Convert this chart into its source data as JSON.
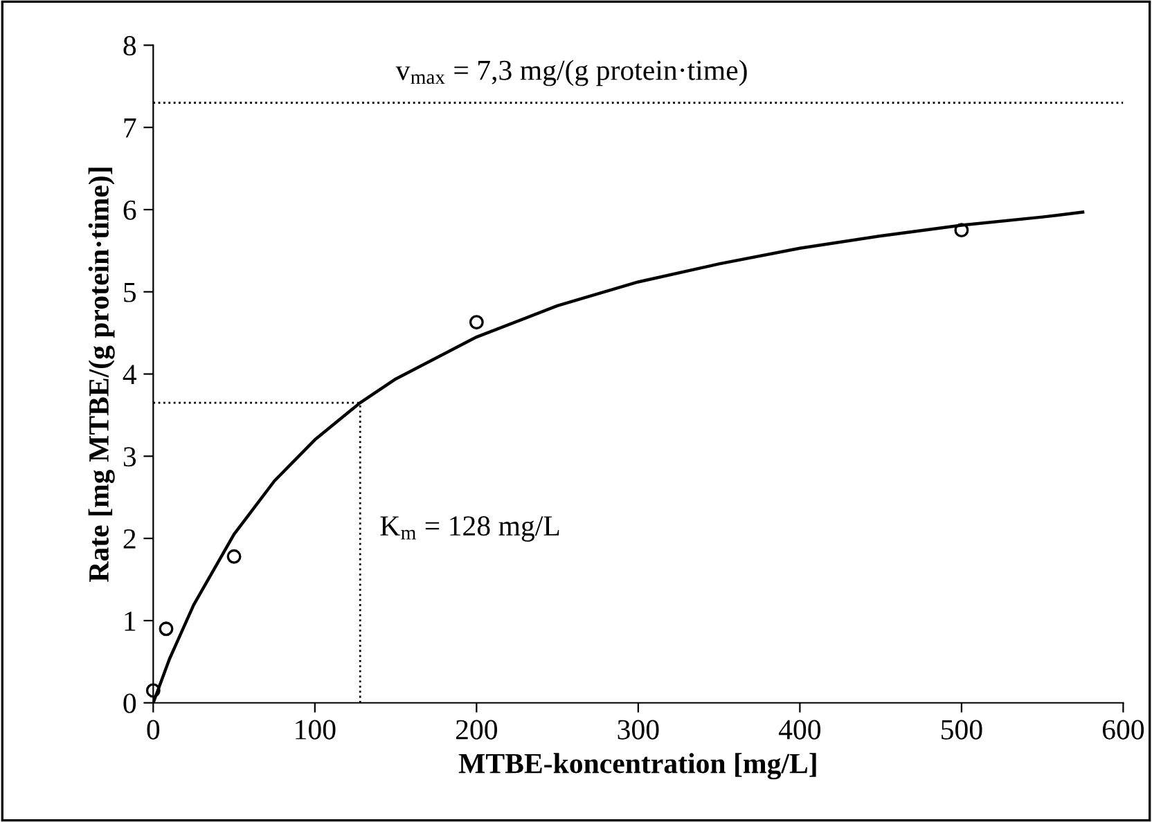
{
  "chart_data": {
    "type": "line",
    "xlabel": "MTBE-koncentration [mg/L]",
    "ylabel": "Rate [mg MTBE/(g protein·time)]",
    "xlim": [
      0,
      600
    ],
    "xticks": [
      0,
      100,
      200,
      300,
      400,
      500,
      600
    ],
    "ylim": [
      0,
      8
    ],
    "yticks": [
      0,
      1,
      2,
      3,
      4,
      5,
      6,
      7,
      8
    ],
    "grid": false,
    "legend": false,
    "series": [
      {
        "type": "scatter",
        "color": "#000000",
        "marker": "circle",
        "x": [
          0,
          8,
          50,
          200,
          500
        ],
        "values": [
          0.15,
          0.9,
          1.78,
          4.63,
          5.75
        ]
      },
      {
        "color": "#000000",
        "marker": "none",
        "line_style": "solid",
        "x": [
          0,
          10,
          25,
          50,
          75,
          100,
          128,
          150,
          200,
          250,
          300,
          350,
          400,
          450,
          500,
          550,
          575
        ],
        "values": [
          0,
          0.53,
          1.19,
          2.05,
          2.7,
          3.2,
          3.65,
          3.94,
          4.45,
          4.83,
          5.12,
          5.34,
          5.53,
          5.68,
          5.81,
          5.91,
          5.97
        ]
      }
    ],
    "ref_lines": [
      {
        "axis": "y",
        "value": 7.3,
        "label": "v$_{max}$ = 7,3 mg/(g protein·time)",
        "color": "#000000",
        "line_style": "dotted"
      },
      {
        "axis": "y",
        "value": 3.65,
        "color": "#000000",
        "line_style": "dotted"
      },
      {
        "axis": "x",
        "value": 128,
        "label": "K$_{m}$ = 128 mg/L",
        "color": "#000000",
        "line_style": "dotted"
      }
    ]
  }
}
